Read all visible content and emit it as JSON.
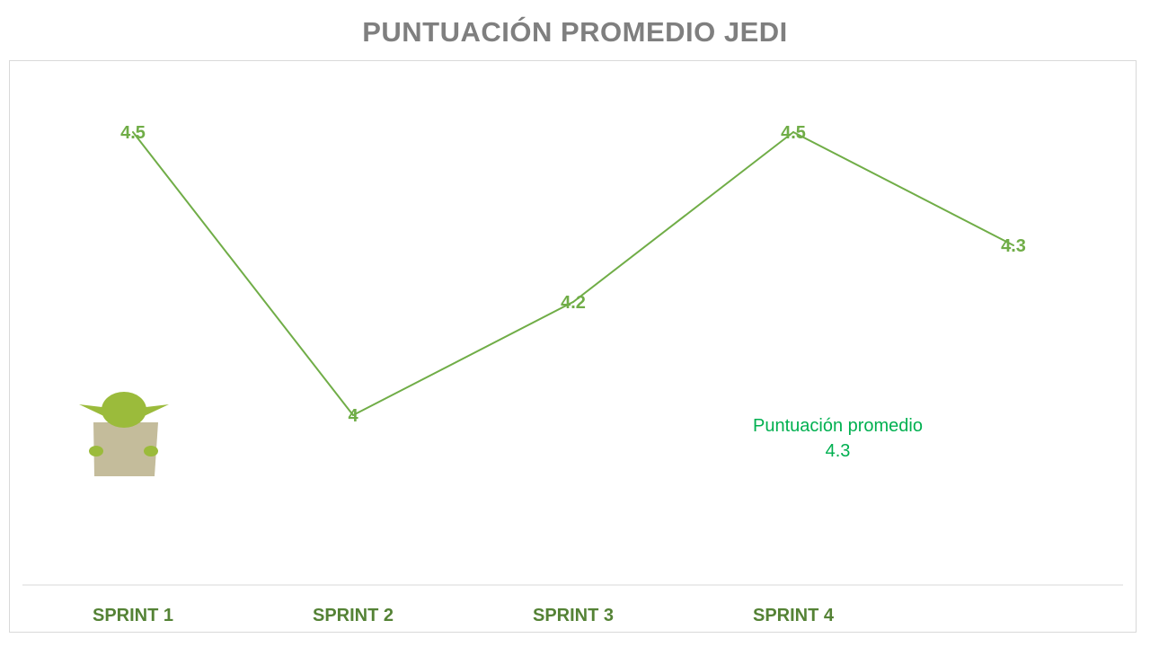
{
  "chart_data": {
    "type": "line",
    "title": "PUNTUACIÓN PROMEDIO JEDI",
    "categories": [
      "SPRINT 1",
      "SPRINT 2",
      "SPRINT 3",
      "SPRINT 4",
      ""
    ],
    "series": [
      {
        "values": [
          4.5,
          4,
          4.2,
          4.5,
          4.3
        ],
        "labels": [
          "4.5",
          "4",
          "4.2",
          "4.5",
          "4.3"
        ],
        "color": "#70ad47"
      }
    ],
    "grid": false,
    "legend": "none"
  },
  "annotation": {
    "label": "Puntuación promedio",
    "value": "4.3"
  },
  "colors": {
    "title": "#7f7f7f",
    "line": "#70ad47",
    "category_labels": "#548235",
    "annotation": "#00b050",
    "yoda_head": "#9bbb3b",
    "yoda_robe": "#c4bc9b"
  },
  "icons": {
    "mascot": "yoda-icon"
  }
}
